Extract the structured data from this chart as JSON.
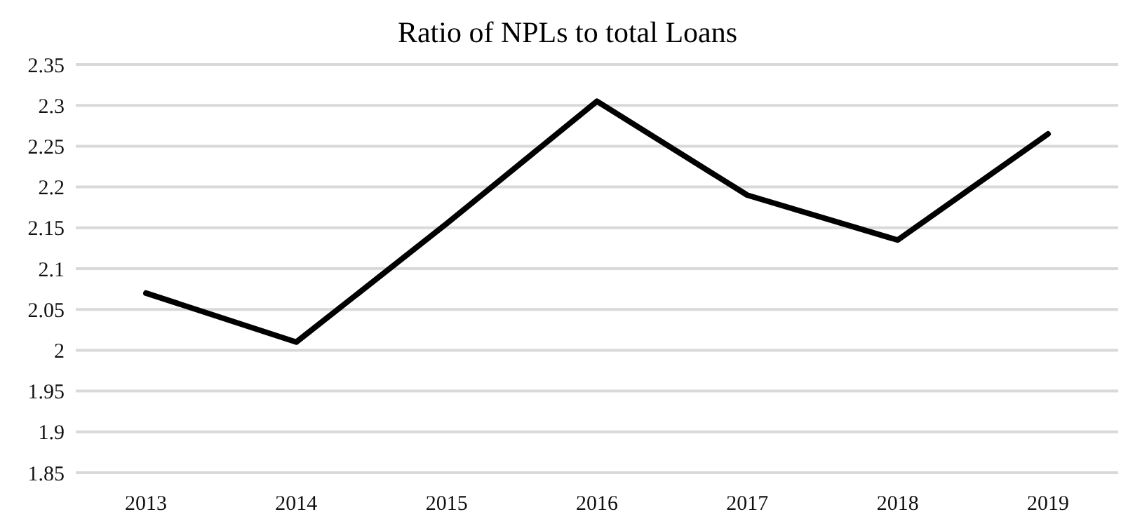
{
  "chart_data": {
    "type": "line",
    "title": "Ratio of NPLs to total Loans",
    "categories": [
      "2013",
      "2014",
      "2015",
      "2016",
      "2017",
      "2018",
      "2019"
    ],
    "series": [
      {
        "color": "#000000",
        "values": [
          2.07,
          2.01,
          2.155,
          2.305,
          2.19,
          2.135,
          2.265
        ]
      }
    ],
    "ylim": [
      1.85,
      2.35
    ],
    "yticks": [
      1.85,
      1.9,
      1.95,
      2,
      2.05,
      2.1,
      2.15,
      2.2,
      2.25,
      2.3,
      2.35
    ],
    "grid": "y",
    "legend": false,
    "marker": "none",
    "line_style": "solid"
  }
}
